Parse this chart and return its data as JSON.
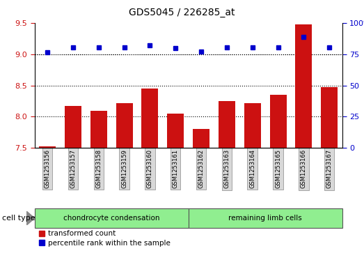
{
  "title": "GDS5045 / 226285_at",
  "samples": [
    "GSM1253156",
    "GSM1253157",
    "GSM1253158",
    "GSM1253159",
    "GSM1253160",
    "GSM1253161",
    "GSM1253162",
    "GSM1253163",
    "GSM1253164",
    "GSM1253165",
    "GSM1253166",
    "GSM1253167"
  ],
  "bar_values": [
    7.53,
    8.17,
    8.09,
    8.22,
    8.45,
    8.05,
    7.8,
    8.25,
    8.22,
    8.35,
    9.47,
    8.47
  ],
  "scatter_values": [
    76.5,
    80.5,
    80.5,
    80.5,
    82.0,
    80.0,
    77.0,
    80.5,
    80.5,
    80.5,
    88.5,
    80.5
  ],
  "bar_color": "#cc1111",
  "scatter_color": "#0000cc",
  "ylim_left": [
    7.5,
    9.5
  ],
  "ylim_right": [
    0,
    100
  ],
  "yticks_left": [
    7.5,
    8.0,
    8.5,
    9.0,
    9.5
  ],
  "yticks_right": [
    0,
    25,
    50,
    75,
    100
  ],
  "grid_values": [
    8.0,
    8.5,
    9.0
  ],
  "cell_type_groups": [
    {
      "label": "chondrocyte condensation",
      "start": 0,
      "end": 5,
      "color": "#90ee90"
    },
    {
      "label": "remaining limb cells",
      "start": 6,
      "end": 11,
      "color": "#90ee90"
    }
  ],
  "cell_type_label": "cell type",
  "legend_entries": [
    {
      "label": "transformed count",
      "color": "#cc1111"
    },
    {
      "label": "percentile rank within the sample",
      "color": "#0000cc"
    }
  ],
  "plot_bg": "#ffffff",
  "fig_bg": "#ffffff",
  "label_gray": "#d0d0d0",
  "spine_color": "#000000"
}
